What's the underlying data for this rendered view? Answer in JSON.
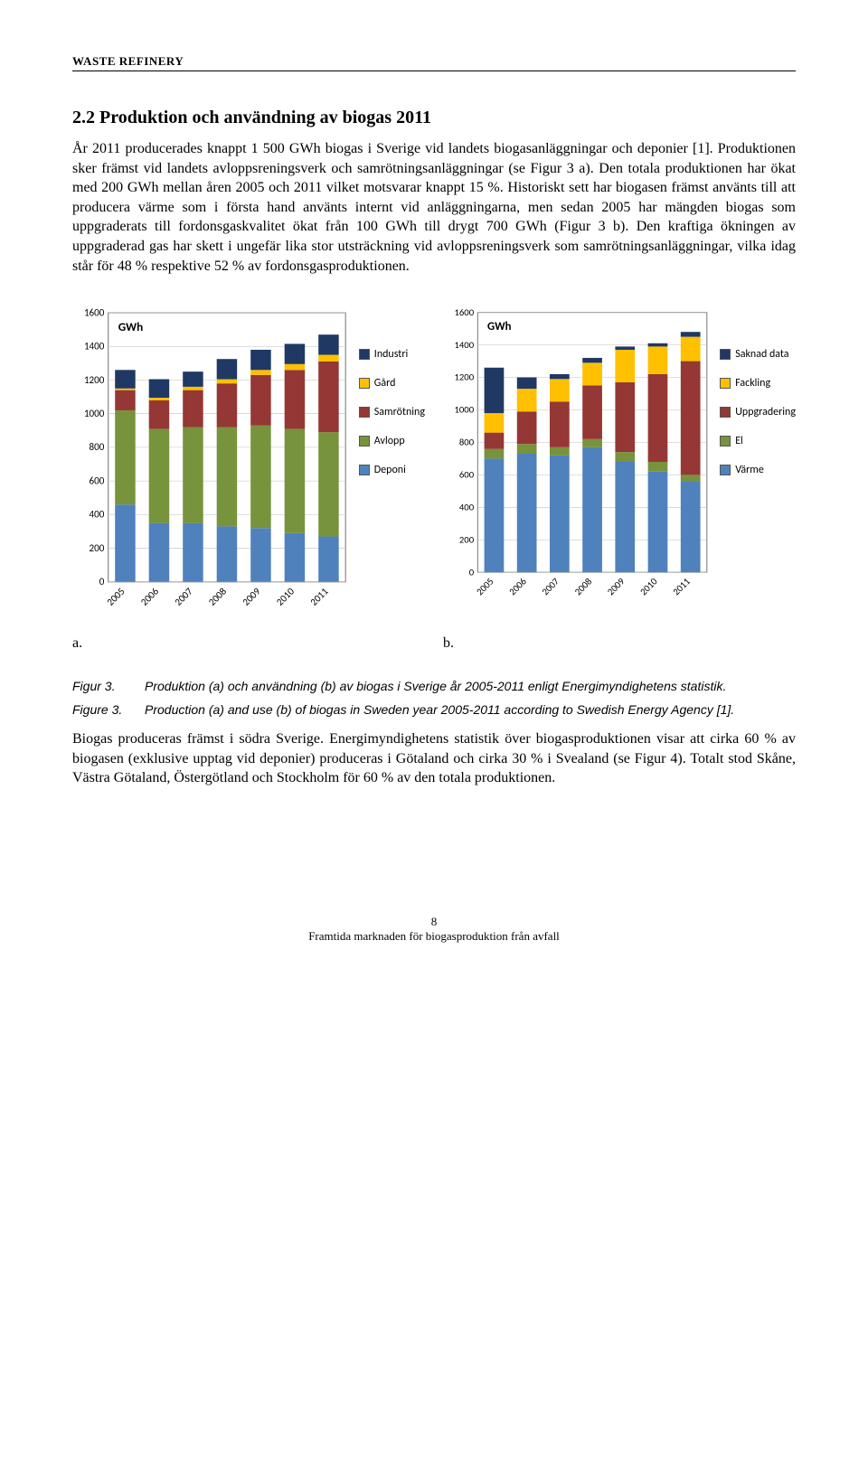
{
  "header": "WASTE REFINERY",
  "section_title": "2.2  Produktion och användning av biogas 2011",
  "paragraph1": "År 2011 producerades knappt 1 500 GWh biogas i Sverige vid landets biogasanläggningar och deponier [1]. Produktionen sker främst vid landets avloppsreningsverk och samrötningsanläggningar (se Figur 3 a). Den totala produktionen har ökat med 200 GWh mellan åren 2005 och 2011 vilket motsvarar knappt 15 %. Historiskt sett har biogasen främst använts till att producera värme som i första hand använts internt vid anläggningarna, men sedan 2005 har mängden biogas som uppgraderats till fordonsgaskvalitet ökat från 100 GWh till drygt 700 GWh (Figur 3 b). Den kraftiga ökningen av uppgraderad gas har skett i ungefär lika stor utsträckning vid avloppsreningsverk som samrötningsanläggningar, vilka idag står för 48 % respektive 52 % av fordonsgasproduktionen.",
  "chart_a": {
    "type": "stacked-bar",
    "unit": "GWh",
    "categories": [
      "2005",
      "2006",
      "2007",
      "2008",
      "2009",
      "2010",
      "2011"
    ],
    "ymax": 1600,
    "ytick": 200,
    "colors": {
      "Industri": "#1f3864",
      "Gård": "#ffc000",
      "Samrötning": "#953735",
      "Avlopp": "#77933c",
      "Deponi": "#4f81bd"
    },
    "series_order": [
      "Deponi",
      "Avlopp",
      "Samrötning",
      "Gård",
      "Industri"
    ],
    "data": {
      "Industri": [
        110,
        110,
        90,
        120,
        120,
        120,
        120
      ],
      "Gård": [
        10,
        15,
        20,
        25,
        30,
        35,
        40
      ],
      "Samrötning": [
        120,
        170,
        220,
        260,
        300,
        350,
        420
      ],
      "Avlopp": [
        560,
        560,
        570,
        590,
        610,
        620,
        620
      ],
      "Deponi": [
        460,
        350,
        350,
        330,
        320,
        290,
        270
      ]
    },
    "legend": [
      "Industri",
      "Gård",
      "Samrötning",
      "Avlopp",
      "Deponi"
    ]
  },
  "chart_b": {
    "type": "stacked-bar",
    "unit": "GWh",
    "categories": [
      "2005",
      "2006",
      "2007",
      "2008",
      "2009",
      "2010",
      "2011"
    ],
    "ymax": 1600,
    "ytick": 200,
    "colors": {
      "Saknad data": "#1f3864",
      "Fackling": "#ffc000",
      "Uppgradering": "#953735",
      "El": "#77933c",
      "Värme": "#4f81bd"
    },
    "series_order": [
      "Värme",
      "El",
      "Uppgradering",
      "Fackling",
      "Saknad data"
    ],
    "data": {
      "Saknad data": [
        280,
        70,
        30,
        30,
        20,
        20,
        30
      ],
      "Fackling": [
        120,
        140,
        140,
        140,
        200,
        170,
        150
      ],
      "Uppgradering": [
        100,
        200,
        280,
        330,
        430,
        540,
        700
      ],
      "El": [
        60,
        60,
        50,
        50,
        60,
        60,
        40
      ],
      "Värme": [
        700,
        730,
        720,
        770,
        680,
        620,
        560
      ]
    },
    "legend": [
      "Saknad data",
      "Fackling",
      "Uppgradering",
      "El",
      "Värme"
    ]
  },
  "ab": {
    "a": "a.",
    "b": "b."
  },
  "fig3_label": "Figur 3.",
  "fig3_text": "Produktion (a) och användning (b) av biogas i Sverige år 2005-2011 enligt Energimyndighetens statistik.",
  "figure3_label": "Figure 3.",
  "figure3_text": "Production (a) and use (b) of biogas in Sweden year 2005-2011 according to Swedish Energy Agency [1].",
  "paragraph2": "Biogas produceras främst i södra Sverige. Energimyndighetens statistik över biogasproduktionen visar att cirka 60 % av biogasen (exklusive upptag vid deponier) produceras i Götaland och cirka 30 % i Svealand (se Figur 4). Totalt stod Skåne, Västra Götaland, Östergötland och Stockholm för 60 % av den totala produktionen.",
  "footer_page": "8",
  "footer_text": "Framtida marknaden för biogasproduktion från avfall",
  "chart_style": {
    "background": "#ffffff",
    "grid_color": "#bfbfbf",
    "axis_color": "#808080",
    "label_fontsize": 10,
    "unit_fontsize": 12,
    "bar_width": 0.6,
    "plot_border": "#808080"
  }
}
